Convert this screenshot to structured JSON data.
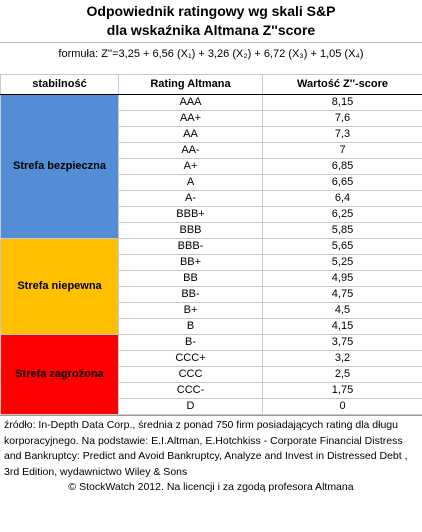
{
  "title": [
    "Odpowiednik ratingowy wg skali S&P",
    "dla wskaźnika Altmana Z''score"
  ],
  "formula": "formuła: Z''=3,25 + 6,56 (X₁) + 3,26 (X₂) + 6,72 (X₃) + 1,05 (X₄)",
  "header": [
    "stabilność",
    "Rating Altmana",
    "Wartość Z''-score"
  ],
  "zones": [
    {
      "label": "Strefa bezpieczna",
      "color": "#538dd5",
      "rows": [
        [
          "AAA",
          "8,15"
        ],
        [
          "AA+",
          "7,6"
        ],
        [
          "AA",
          "7,3"
        ],
        [
          "AA-",
          "7"
        ],
        [
          "A+",
          "6,85"
        ],
        [
          "A",
          "6,65"
        ],
        [
          "A-",
          "6,4"
        ],
        [
          "BBB+",
          "6,25"
        ],
        [
          "BBB",
          "5,85"
        ]
      ]
    },
    {
      "label": "Strefa niepewna",
      "color": "#ffc000",
      "rows": [
        [
          "BBB-",
          "5,65"
        ],
        [
          "BB+",
          "5,25"
        ],
        [
          "BB",
          "4,95"
        ],
        [
          "BB-",
          "4,75"
        ],
        [
          "B+",
          "4,5"
        ],
        [
          "B",
          "4,15"
        ]
      ]
    },
    {
      "label": "Strefa zagrożona",
      "color": "#ff0000",
      "rows": [
        [
          "B-",
          "3,75"
        ],
        [
          "CCC+",
          "3,2"
        ],
        [
          "CCC",
          "2,5"
        ],
        [
          "CCC-",
          "1,75"
        ],
        [
          "D",
          "0"
        ]
      ]
    }
  ],
  "source": "źródło: In-Depth Data Corp., średnia z ponad 750 firm posiadających rating dla długu korporacyjnego. Na podstawie: E.I.Altman, E.Hotchkiss - Corporate Financial Distress and Bankruptcy: Predict and Avoid Bankruptcy, Analyze and Invest in Distressed Debt , 3rd Edition, wydawnictwo Wiley & Sons",
  "copyright": "© StockWatch 2012. Na licencji i za zgodą profesora Altmana"
}
